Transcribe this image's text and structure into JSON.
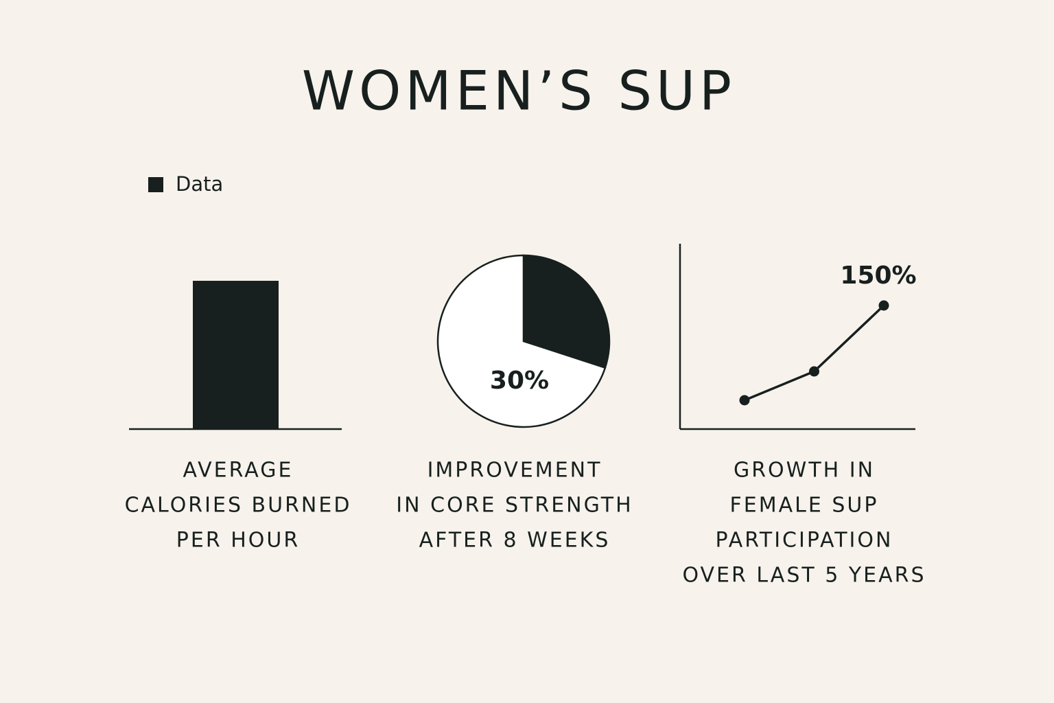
{
  "title": "WOMEN’S SUP",
  "chart_data": [
    {
      "type": "bar",
      "title": [
        "AVERAGE",
        "CALORIES BURNED",
        "PER HOUR"
      ],
      "categories": [
        null
      ],
      "series": [
        {
          "name": "Data",
          "color": "#17201e",
          "values": [
            400
          ]
        }
      ],
      "ylim": [
        0,
        500
      ],
      "legend": "top-left"
    },
    {
      "type": "pie",
      "title": [
        "IMPROVEMENT",
        "IN CORE STRENGTH",
        "AFTER 8 WEEKS"
      ],
      "values": [
        30,
        70
      ],
      "value_labels": [
        "30%",
        null
      ],
      "colors": [
        "#17201e",
        "#ffffff"
      ]
    },
    {
      "type": "line",
      "title": [
        "GROWTH IN",
        "FEMALE SUP",
        "PARTICIPATION",
        "OVER LAST 5 YEARS"
      ],
      "categories": [
        null,
        null,
        null
      ],
      "values": [
        35,
        70,
        150
      ],
      "value_labels": [
        null,
        null,
        "150%"
      ],
      "color": "#17201e",
      "ylim": [
        0,
        225
      ]
    }
  ]
}
